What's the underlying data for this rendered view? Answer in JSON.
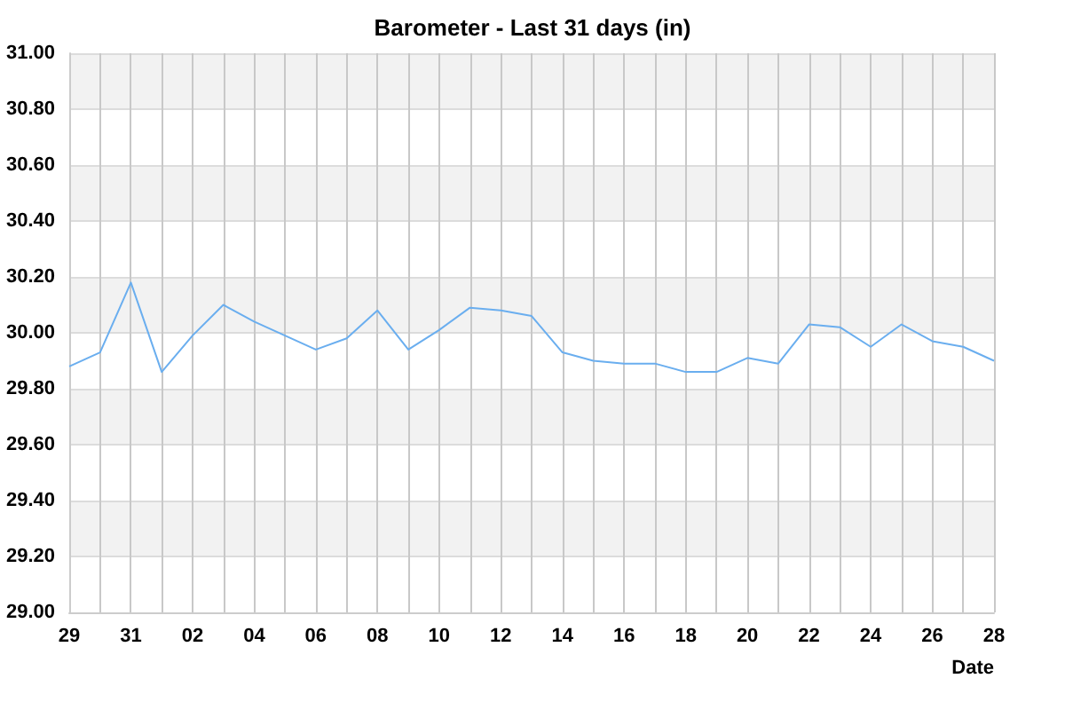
{
  "chart_data": {
    "type": "line",
    "title": "Barometer - Last 31 days (in)",
    "xlabel": "Date",
    "categories": [
      "29",
      null,
      "31",
      null,
      "02",
      null,
      "04",
      null,
      "06",
      null,
      "08",
      null,
      "10",
      null,
      "12",
      null,
      "14",
      null,
      "16",
      null,
      "18",
      null,
      "20",
      null,
      "22",
      null,
      "24",
      null,
      "26",
      null,
      "28"
    ],
    "series": [
      {
        "color": "#6aaeef",
        "values": [
          29.88,
          29.93,
          30.18,
          29.86,
          29.99,
          30.1,
          30.04,
          29.99,
          29.94,
          29.98,
          30.08,
          29.94,
          30.01,
          30.09,
          30.08,
          30.06,
          29.93,
          29.9,
          29.89,
          29.89,
          29.86,
          29.86,
          29.91,
          29.89,
          30.03,
          30.02,
          29.95,
          30.03,
          29.97,
          29.95,
          29.9
        ]
      }
    ],
    "ylim": [
      29,
      31
    ],
    "yticks": [
      {
        "value": 29,
        "label": "29.00"
      },
      {
        "value": 29.2,
        "label": "29.20"
      },
      {
        "value": 29.4,
        "label": "29.40"
      },
      {
        "value": 29.6,
        "label": "29.60"
      },
      {
        "value": 29.8,
        "label": "29.80"
      },
      {
        "value": 30,
        "label": "30.00"
      },
      {
        "value": 30.2,
        "label": "30.20"
      },
      {
        "value": 30.4,
        "label": "30.40"
      },
      {
        "value": 30.6,
        "label": "30.60"
      },
      {
        "value": 30.8,
        "label": "30.80"
      },
      {
        "value": 31,
        "label": "31.00"
      }
    ],
    "grid": true,
    "marker": "none",
    "line_style": "solid"
  }
}
